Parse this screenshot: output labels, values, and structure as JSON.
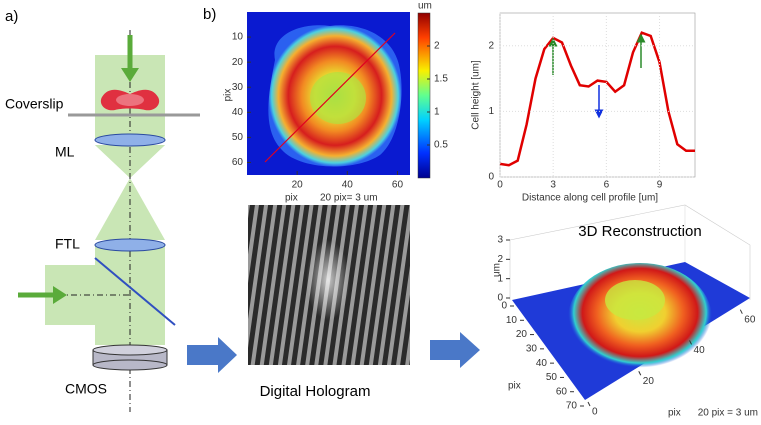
{
  "panel_a": {
    "label": "a)",
    "coverslip": "Coverslip",
    "ml": "ML",
    "ftl": "FTL",
    "cmos": "CMOS"
  },
  "panel_b": {
    "label": "b)"
  },
  "phase_map": {
    "colorbar_unit": "um",
    "clim": [
      0,
      2.5
    ],
    "colorbar_ticks": [
      2,
      1.5,
      1,
      0.5
    ],
    "xlim": [
      0,
      65
    ],
    "xticks": [
      20,
      40,
      60
    ],
    "ylim": [
      0,
      65
    ],
    "yticks": [
      10,
      20,
      30,
      40,
      50,
      60
    ],
    "xlabel": "pix",
    "scale_note": "20 pix= 3 um",
    "ylabel": "pix"
  },
  "profile": {
    "xlabel": "Distance along cell profile [um]",
    "ylabel": "Cell height [um]",
    "xlim": [
      0,
      11
    ],
    "xticks": [
      0,
      3,
      6,
      9
    ],
    "ylim": [
      0,
      2.5
    ],
    "yticks": [
      0,
      1,
      2
    ],
    "x": [
      0,
      0.5,
      1,
      1.5,
      2,
      2.5,
      3,
      3.5,
      4,
      4.5,
      5,
      5.5,
      6,
      6.5,
      7,
      7.5,
      8,
      8.5,
      9,
      9.5,
      10,
      10.5,
      11
    ],
    "values": [
      0.2,
      0.18,
      0.25,
      0.8,
      1.5,
      1.95,
      2.12,
      2.05,
      1.7,
      1.4,
      1.38,
      1.47,
      1.45,
      1.3,
      1.4,
      1.9,
      2.2,
      2.15,
      1.75,
      1.0,
      0.5,
      0.4,
      0.4
    ],
    "color": "#e00000"
  },
  "hologram": {
    "caption": "Digital Hologram"
  },
  "reconstruction": {
    "title": "3D Reconstruction",
    "zlabel": "um",
    "zlim": [
      0,
      3
    ],
    "zticks": [
      0,
      1,
      2,
      3
    ],
    "ylim": [
      0,
      70
    ],
    "yticks": [
      0,
      10,
      20,
      30,
      40,
      50,
      60,
      70
    ],
    "ylabel": "pix",
    "xlim": [
      0,
      65
    ],
    "xticks": [
      0,
      20,
      40,
      60
    ],
    "xlabel": "pix",
    "scale_note": "20 pix = 3 um"
  }
}
